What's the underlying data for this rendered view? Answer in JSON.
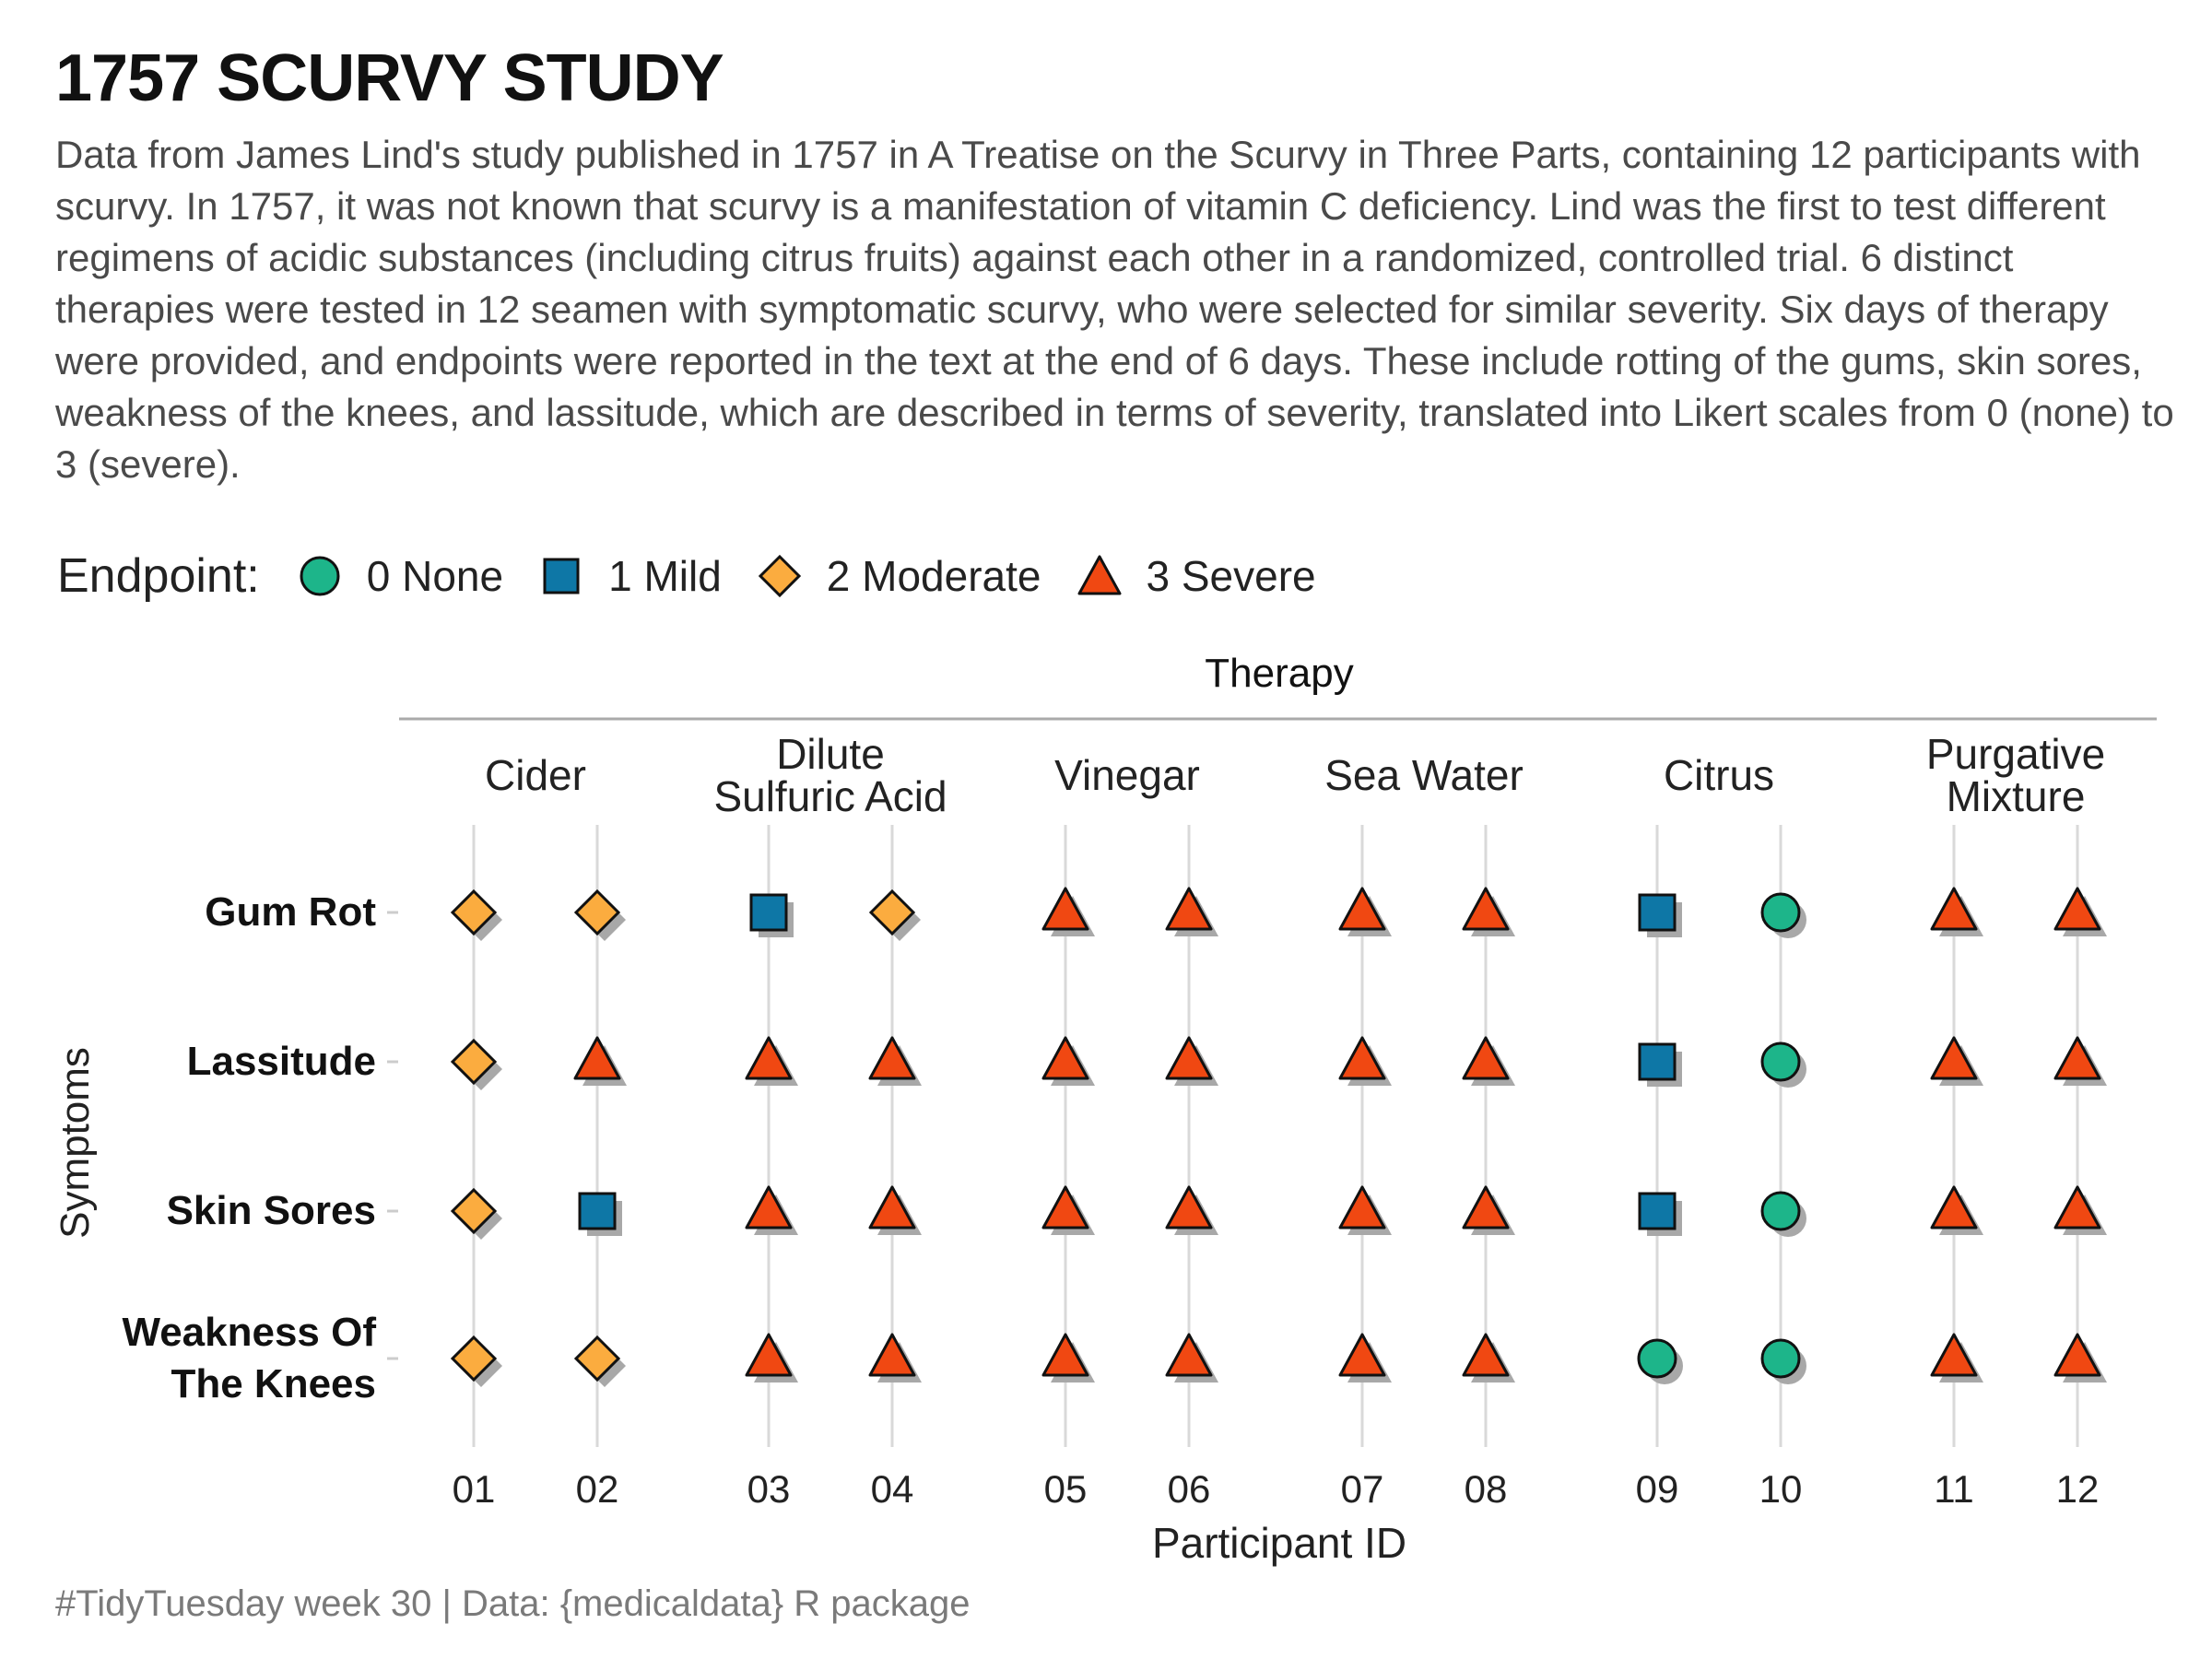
{
  "title": "1757 SCURVY STUDY",
  "subtitle": "Data from James Lind's study published in 1757 in A Treatise on the Scurvy in Three Parts, containing 12 participants with scurvy. In 1757, it was not known that scurvy is a manifestation of vitamin C deficiency. Lind was the first to test different regimens of acidic substances (including citrus fruits) against each other in a randomized, controlled trial. 6 distinct therapies were tested in 12 seamen with symptomatic scurvy, who were selected for similar severity. Six days of therapy were provided, and endpoints were reported in the text at the end of 6 days. These include rotting of the gums, skin sores, weakness of the knees, and lassitude, which are described in terms of severity, translated into Likert scales from 0 (none) to 3 (severe).",
  "legend": {
    "title": "Endpoint:",
    "items": [
      {
        "label": "0 None",
        "shape": "circle",
        "color": "#1db58a"
      },
      {
        "label": "1 Mild",
        "shape": "square",
        "color": "#0e77a6"
      },
      {
        "label": "2 Moderate",
        "shape": "diamond",
        "color": "#fbac3f"
      },
      {
        "label": "3 Severe",
        "shape": "triangle",
        "color": "#f04812"
      }
    ]
  },
  "caption": "#TidyTuesday week 30 | Data: {medicaldata} R package",
  "chart_data": {
    "type": "scatter",
    "facet_title": "Therapy",
    "xlabel": "Participant ID",
    "ylabel": "Symptoms",
    "symptoms": [
      "Gum Rot",
      "Lassitude",
      "Skin Sores",
      "Weakness Of The Knees"
    ],
    "symptom_lines": [
      [
        "Gum Rot"
      ],
      [
        "Lassitude"
      ],
      [
        "Skin Sores"
      ],
      [
        "Weakness Of",
        "The Knees"
      ]
    ],
    "therapies": [
      {
        "name": "Cider",
        "lines": [
          "Cider"
        ],
        "participants": [
          "01",
          "02"
        ]
      },
      {
        "name": "Dilute Sulfuric Acid",
        "lines": [
          "Dilute",
          "Sulfuric Acid"
        ],
        "participants": [
          "03",
          "04"
        ]
      },
      {
        "name": "Vinegar",
        "lines": [
          "Vinegar"
        ],
        "participants": [
          "05",
          "06"
        ]
      },
      {
        "name": "Sea Water",
        "lines": [
          "Sea Water"
        ],
        "participants": [
          "07",
          "08"
        ]
      },
      {
        "name": "Citrus",
        "lines": [
          "Citrus"
        ],
        "participants": [
          "09",
          "10"
        ]
      },
      {
        "name": "Purgative Mixture",
        "lines": [
          "Purgative",
          "Mixture"
        ],
        "participants": [
          "11",
          "12"
        ]
      }
    ],
    "scores": {
      "01": [
        2,
        2,
        2,
        2
      ],
      "02": [
        2,
        3,
        1,
        2
      ],
      "03": [
        1,
        3,
        3,
        3
      ],
      "04": [
        2,
        3,
        3,
        3
      ],
      "05": [
        3,
        3,
        3,
        3
      ],
      "06": [
        3,
        3,
        3,
        3
      ],
      "07": [
        3,
        3,
        3,
        3
      ],
      "08": [
        3,
        3,
        3,
        3
      ],
      "09": [
        1,
        1,
        1,
        0
      ],
      "10": [
        0,
        0,
        0,
        0
      ],
      "11": [
        3,
        3,
        3,
        3
      ],
      "12": [
        3,
        3,
        3,
        3
      ]
    },
    "score_scale": [
      0,
      3
    ],
    "grid": true
  }
}
